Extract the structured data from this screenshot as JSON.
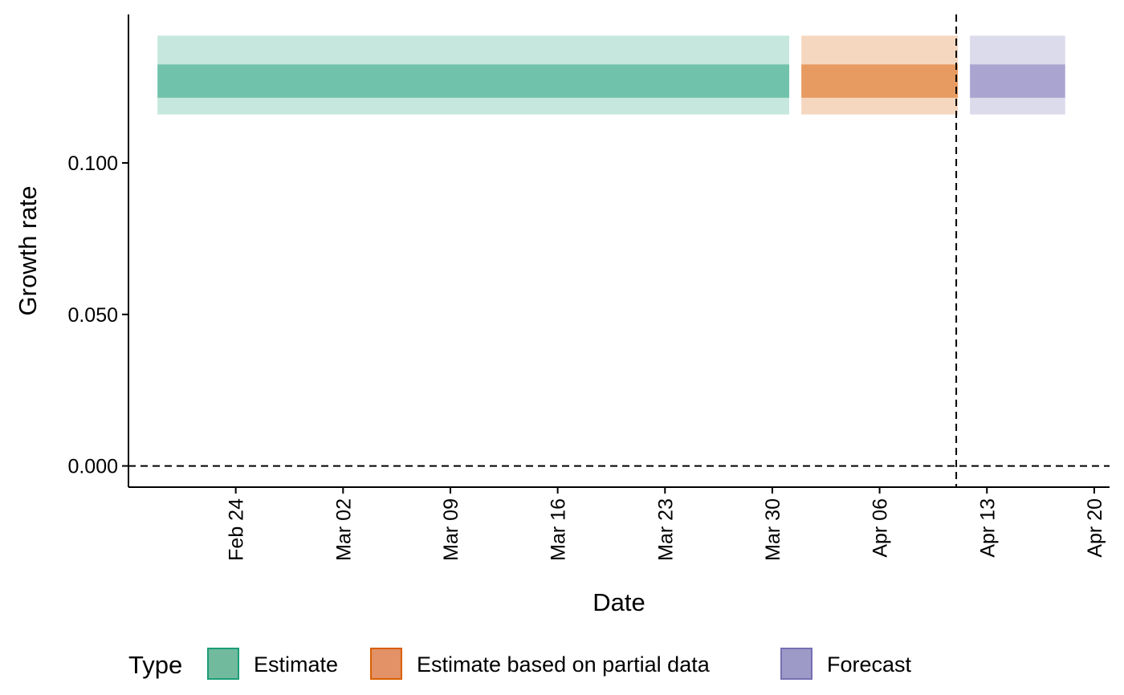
{
  "chart_data": {
    "type": "area",
    "xlabel": "Date",
    "ylabel": "Growth rate",
    "xlim": [
      "2020-02-17",
      "2020-04-21"
    ],
    "ylim": [
      -0.007,
      0.149
    ],
    "x_ticks": [
      {
        "date": "2020-02-24",
        "label": "Feb 24"
      },
      {
        "date": "2020-03-02",
        "label": "Mar 02"
      },
      {
        "date": "2020-03-09",
        "label": "Mar 09"
      },
      {
        "date": "2020-03-16",
        "label": "Mar 16"
      },
      {
        "date": "2020-03-23",
        "label": "Mar 23"
      },
      {
        "date": "2020-03-30",
        "label": "Mar 30"
      },
      {
        "date": "2020-04-06",
        "label": "Apr 06"
      },
      {
        "date": "2020-04-13",
        "label": "Apr 13"
      },
      {
        "date": "2020-04-20",
        "label": "Apr 20"
      }
    ],
    "y_ticks": [
      {
        "value": 0.0,
        "label": "0.000"
      },
      {
        "value": 0.05,
        "label": "0.050"
      },
      {
        "value": 0.1,
        "label": "0.100"
      }
    ],
    "reference_lines": {
      "horizontal_y": 0.0,
      "vertical_date": "2020-04-11"
    },
    "series": [
      {
        "name": "Estimate",
        "color": "#1B9E77",
        "x_start": "2020-02-19",
        "x_end": "2020-03-31",
        "outer_band": [
          0.116,
          0.142
        ],
        "inner_band": [
          0.1215,
          0.1325
        ]
      },
      {
        "name": "Estimate based on partial data",
        "color": "#D95F02",
        "x_start": "2020-04-01",
        "x_end": "2020-04-11",
        "outer_band": [
          0.116,
          0.142
        ],
        "inner_band": [
          0.1215,
          0.1325
        ]
      },
      {
        "name": "Forecast",
        "color": "#7570B3",
        "x_start": "2020-04-12",
        "x_end": "2020-04-18",
        "outer_band": [
          0.116,
          0.142
        ],
        "inner_band": [
          0.1215,
          0.1325
        ]
      }
    ],
    "legend": {
      "title": "Type",
      "placement": "bottom",
      "items": [
        {
          "label": "Estimate",
          "fill": "#72BA9E",
          "stroke": "#1B9E77"
        },
        {
          "label": "Estimate based on partial data",
          "fill": "#E39166",
          "stroke": "#D95F02"
        },
        {
          "label": "Forecast",
          "fill": "#9E9AC8",
          "stroke": "#7570B3"
        }
      ]
    },
    "grid": false
  }
}
